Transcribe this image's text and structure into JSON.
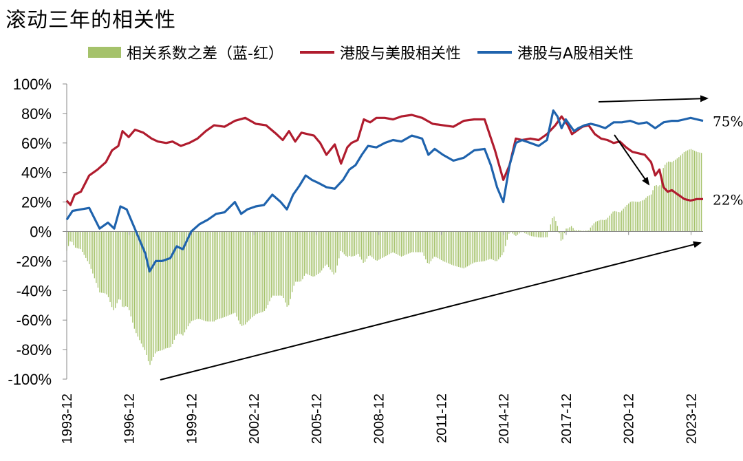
{
  "chart_data": {
    "type": "line",
    "title": "滚动三年的相关性",
    "ylim": [
      -100,
      100
    ],
    "y_ticks": [
      "100%",
      "80%",
      "60%",
      "40%",
      "20%",
      "0%",
      "-20%",
      "-40%",
      "-60%",
      "-80%",
      "-100%"
    ],
    "x_ticks": [
      "1993-12",
      "1996-12",
      "1999-12",
      "2002-12",
      "2005-12",
      "2008-12",
      "2011-12",
      "2014-12",
      "2017-12",
      "2020-12",
      "2023-12"
    ],
    "x_tick_positions": [
      1993.92,
      1996.92,
      1999.92,
      2002.92,
      2005.92,
      2008.92,
      2011.92,
      2014.92,
      2017.92,
      2020.92,
      2023.92
    ],
    "xlim": [
      1993.92,
      2024.5
    ],
    "series": [
      {
        "name": "相关系数之差（蓝-红）",
        "kind": "bar",
        "color": "#a5c26b",
        "derived_from": "港股与A股相关性 minus 港股与美股相关性"
      },
      {
        "name": "港股与美股相关性",
        "kind": "line",
        "color": "#b01c2e",
        "x": [
          1993.92,
          1994.1,
          1994.3,
          1994.6,
          1995.0,
          1995.4,
          1995.8,
          1996.1,
          1996.4,
          1996.6,
          1996.9,
          1997.2,
          1997.6,
          1998.0,
          1998.3,
          1998.7,
          1999.0,
          1999.4,
          1999.8,
          2000.2,
          2000.6,
          2001.0,
          2001.5,
          2002.0,
          2002.5,
          2003.0,
          2003.5,
          2004.0,
          2004.3,
          2004.6,
          2004.9,
          2005.2,
          2005.5,
          2005.8,
          2006.1,
          2006.4,
          2006.8,
          2007.1,
          2007.4,
          2007.6,
          2007.9,
          2008.2,
          2008.5,
          2008.8,
          2009.2,
          2009.6,
          2010.0,
          2010.5,
          2011.0,
          2011.5,
          2012.0,
          2012.5,
          2013.0,
          2013.5,
          2014.0,
          2014.5,
          2014.9,
          2015.2,
          2015.5,
          2015.8,
          2016.2,
          2016.6,
          2017.0,
          2017.4,
          2017.7,
          2018.0,
          2018.2,
          2018.4,
          2018.7,
          2019.0,
          2019.3,
          2019.6,
          2019.9,
          2020.2,
          2020.5,
          2020.8,
          2021.1,
          2021.4,
          2021.7,
          2022.0,
          2022.2,
          2022.4,
          2022.6,
          2022.8,
          2023.0,
          2023.3,
          2023.6,
          2023.9,
          2024.2,
          2024.5
        ],
        "y": [
          21,
          18,
          25,
          27,
          38,
          42,
          47,
          55,
          58,
          68,
          64,
          69,
          67,
          63,
          61,
          60,
          61,
          58,
          60,
          63,
          68,
          72,
          71,
          75,
          77,
          73,
          72,
          66,
          62,
          68,
          61,
          67,
          66,
          65,
          60,
          52,
          59,
          46,
          57,
          60,
          62,
          76,
          74,
          77,
          77,
          76,
          78,
          79,
          77,
          73,
          72,
          71,
          75,
          76,
          76,
          55,
          35,
          45,
          63,
          62,
          63,
          62,
          66,
          72,
          78,
          72,
          66,
          68,
          71,
          72,
          66,
          63,
          62,
          60,
          61,
          57,
          54,
          53,
          52,
          47,
          38,
          42,
          30,
          27,
          28,
          25,
          22,
          21,
          22,
          22
        ]
      },
      {
        "name": "港股与A股相关性",
        "kind": "line",
        "color": "#1f63ad",
        "x": [
          1993.92,
          1994.2,
          1994.6,
          1995.0,
          1995.5,
          1995.9,
          1996.2,
          1996.5,
          1996.8,
          1997.1,
          1997.4,
          1997.7,
          1997.9,
          1998.2,
          1998.5,
          1998.9,
          1999.2,
          1999.5,
          1999.9,
          2000.3,
          2000.7,
          2001.1,
          2001.5,
          2002.0,
          2002.3,
          2002.6,
          2003.0,
          2003.4,
          2003.8,
          2004.2,
          2004.5,
          2004.8,
          2005.1,
          2005.4,
          2005.7,
          2006.0,
          2006.4,
          2006.8,
          2007.2,
          2007.5,
          2007.8,
          2008.1,
          2008.4,
          2008.8,
          2009.2,
          2009.6,
          2010.0,
          2010.5,
          2011.0,
          2011.3,
          2011.6,
          2012.0,
          2012.5,
          2013.0,
          2013.5,
          2014.0,
          2014.3,
          2014.6,
          2014.9,
          2015.2,
          2015.5,
          2015.8,
          2016.2,
          2016.6,
          2017.0,
          2017.3,
          2017.5,
          2017.7,
          2017.9,
          2018.1,
          2018.3,
          2018.5,
          2018.8,
          2019.1,
          2019.4,
          2019.8,
          2020.2,
          2020.6,
          2021.0,
          2021.4,
          2021.8,
          2022.2,
          2022.6,
          2023.0,
          2023.3,
          2023.6,
          2023.9,
          2024.2,
          2024.5
        ],
        "y": [
          8,
          14,
          15,
          16,
          2,
          6,
          2,
          17,
          15,
          5,
          -5,
          -15,
          -27,
          -20,
          -20,
          -18,
          -10,
          -12,
          0,
          5,
          8,
          12,
          13,
          20,
          12,
          15,
          17,
          18,
          25,
          20,
          15,
          25,
          31,
          38,
          35,
          33,
          30,
          29,
          35,
          42,
          45,
          52,
          58,
          57,
          60,
          62,
          61,
          65,
          63,
          52,
          56,
          52,
          48,
          50,
          55,
          56,
          45,
          30,
          20,
          45,
          60,
          62,
          60,
          58,
          62,
          82,
          78,
          70,
          76,
          72,
          68,
          70,
          72,
          73,
          72,
          70,
          74,
          74,
          75,
          73,
          74,
          70,
          74,
          75,
          75,
          76,
          77,
          76,
          75
        ]
      }
    ],
    "legend_position": "top",
    "annotations": {
      "label_blue_end": "75%",
      "label_red_end": "22%",
      "arrows": [
        "upward trend of difference (bars)",
        "blue flat high",
        "red declining"
      ]
    }
  },
  "legend": {
    "bar_label": "相关系数之差（蓝-红）",
    "red_label": "港股与美股相关性",
    "blue_label": "港股与A股相关性"
  }
}
